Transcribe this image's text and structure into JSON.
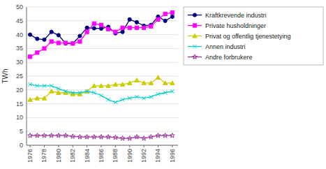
{
  "chart_data": {
    "type": "line",
    "ylabel": "TWh",
    "x": [
      1976,
      1977,
      1978,
      1979,
      1980,
      1981,
      1982,
      1983,
      1984,
      1985,
      1986,
      1987,
      1988,
      1989,
      1990,
      1991,
      1992,
      1993,
      1994,
      1995,
      1996
    ],
    "xlim": [
      1975.5,
      1996.8
    ],
    "xticks": [
      1976,
      1978,
      1980,
      1982,
      1984,
      1986,
      1988,
      1990,
      1992,
      1994,
      1996
    ],
    "ylim": [
      0,
      50
    ],
    "yticks": [
      0,
      5,
      10,
      15,
      20,
      25,
      30,
      35,
      40,
      45,
      50
    ],
    "grid": true,
    "legend": "right",
    "series": [
      {
        "name": "Kraftkrevende industri",
        "color": "#000080",
        "marker": "circle",
        "values": [
          40.0,
          38.5,
          38.2,
          41.0,
          39.8,
          36.8,
          36.8,
          39.5,
          42.5,
          42.3,
          42.2,
          42.8,
          40.5,
          41.0,
          45.5,
          44.5,
          43.2,
          43.5,
          46.5,
          45.0,
          46.5
        ]
      },
      {
        "name": "Private husholdninger",
        "color": "#ff00ff",
        "marker": "square",
        "values": [
          32.0,
          33.5,
          35.0,
          37.5,
          37.0,
          37.0,
          36.8,
          37.5,
          41.0,
          44.0,
          43.5,
          42.0,
          41.0,
          42.5,
          42.5,
          42.5,
          42.5,
          43.0,
          45.5,
          47.5,
          48.0
        ]
      },
      {
        "name": "Privat og offentlig tjenestetying",
        "color": "#cccc00",
        "marker": "triangle",
        "values": [
          16.5,
          17.0,
          17.0,
          19.5,
          19.0,
          19.0,
          18.5,
          18.5,
          19.5,
          21.5,
          21.5,
          21.5,
          22.0,
          22.0,
          22.5,
          23.5,
          22.5,
          22.5,
          24.5,
          22.5,
          22.5
        ]
      },
      {
        "name": "Annen industri",
        "color": "#00cccc",
        "marker": "x",
        "values": [
          22.0,
          21.5,
          21.5,
          21.5,
          20.5,
          19.5,
          19.0,
          19.0,
          19.5,
          19.0,
          18.0,
          16.5,
          15.5,
          16.5,
          17.0,
          17.5,
          17.0,
          17.5,
          18.5,
          19.0,
          19.5
        ]
      },
      {
        "name": "Andre forbrukere",
        "color": "#993399",
        "marker": "star",
        "values": [
          3.5,
          3.5,
          3.5,
          3.5,
          3.5,
          3.5,
          3.2,
          3.0,
          3.0,
          3.0,
          3.0,
          3.0,
          2.8,
          2.5,
          2.5,
          3.0,
          2.5,
          3.0,
          3.5,
          3.5,
          3.5
        ]
      }
    ]
  }
}
